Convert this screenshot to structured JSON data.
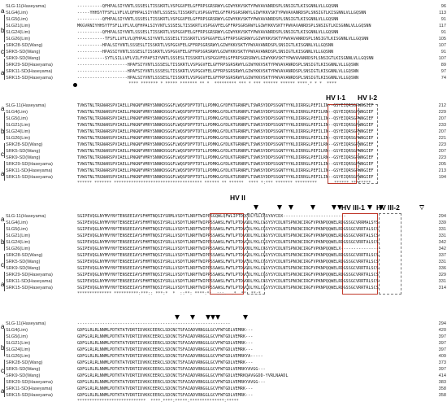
{
  "names": [
    "SLG-11(Haseyama)",
    "SLG4(Lim)",
    "SLG5(Lim)",
    "SLG21(Lim)",
    "SLG24(Lim)",
    "SLG26(Lim)",
    "SRK28-SD(Wang)",
    "SRK5-SD(Wang)",
    "SRK9-SD(Wang)",
    "SRK29-SD(Haseyama)",
    "SRK11-SD(Haseyama)",
    "SRK15-SD(Haseyama)"
  ],
  "groups": [
    "a",
    "b",
    "c",
    "a"
  ],
  "blocks": [
    {
      "seqs": [
        "----------QFHPALSIYVNTLSSSESLTISSKRTLVSPGGVFELGFFRPSGRSRWYLGIWYKKVSKTYPWVAVANRDSPLSNSIGTLKISGNNLVLLGQSNN",
        "-----YHHSYTFSFLLVFLVLQFHPALSIYVNTLSSSESLTISSKRTLVSPGGVFELGFFRPSGRSRWYLGIWYKKVSKTYPWVAVANRDSPLSNSIGTLKISGNNLVLLGQSNN",
        "----------QFHPALSIYVNTLSSSESLTISSKRTLVSPGGVFELGFFRPSGRSRWYLGIWYKKVSKTYPWVAVANRDSPLSNSIGTLKISGNNLVLLGQSNN",
        "MKGVRNIYHHSYTFSFLLVFLVLQFHPALSIYVNTLSSSESLTISSKRTLVSPGGVFELGFFRPSGRSRWYLGIWYKKVSKTYPWVAVANRDSPLSNSIGTLKISGNNLVLLGQSNN",
        "----------QFHPALSIYVNTLSSSESLTISSKRTLVSPGGVFELGFFRPSGRSRWYLGIWYKKVSKTYPWVAVANRDSPLSNSIGTLKISGNNLVLLGQSNN",
        "-----------TFSFLLVFLVLQFHPALSIYVNTLSSSESLTISSKRTLVSPGGVFELGFFRPSGRSRWYLGIWYKKVSKTYPWVAVANRDSPLSNSIGTLKISGNNLVLLGQSNN",
        "----------HPALSIYVNTLSSSESLTISSKRTLVSPGGVFELGFFRPSGRSRWYLGIWYKKVSKTYPWVAVANRDSPLSNSIGTLKISGNNLVLLGQSNN",
        "----------HPASSIYVNTLSSSESLTISSKRTLVSPGGVFELGFFRPSGRSRWYLGIWYKKVSKTYPWVAVANRDSPLSNSIGTLKISGNNLVLLGQSNN",
        "-----------SYTLSILLVFLVILFYPAFSIYVNTLSSSESLTISSKRTLVSPGGVFELGFFRPSGRSRWYLGIWYKKVSKTYPWVAVANRDSPLSNSIGTLKISGNNLVLLGQSNN",
        "--------------------HPAFSIYVNTLSSSESLTISSKRTLVSPGGVFELGFFRPSGRSRWYLGIWYKKVSKTYPWVAVANRDSPLSNSIGTLKISGNNLVLLGQSNN",
        "--------------------HPAFSIYVNTLSSSESLTISSKRTLVSPGGVFELGFFRPSGRSRWYLGIWYKKVSKTYPWVAVANRDSPLSNSIGTLKISGNNLVLLGQSNN",
        "--------------------HPALSIYVNTLSSSESLTISSKRTLVSPGGVFELGFFRPSGRSRWYLGIWYKKVSKTYPWVAVANRDSPLSNSIGTLKISGNNLVLLGQSNN"
      ],
      "nums": [
        "96",
        "113",
        "91",
        "117",
        "91",
        "105",
        "107",
        "91",
        "107",
        "89",
        "97",
        "74"
      ],
      "cons": "                     **** ******* * ***** ******* ** *  ********* *** * *** ****** ****** ****.* * *  ****"
    },
    {
      "seqs": [
        "TVWSTNLTRGNARSPVIAELLPNGNFVMRYSNNKDSGGFLWQSFDFPTDTLLPDMKLGYDFKTGRNRFLTSWRSYDDPSSGNTYYKLDIRRGLPEFILIN--GSYEIQRSGPWNGIEF",
        "TVWSTNLTRGNARSPVIAELLPNGNFVMRYSNNKDSGGFLWQSFDFPTDTLLPDMKLGYDLKTGRNRFLTSWKSYDDPSSGNTYYKLDIRRGLPEFILRN--QSYEIQRSGPWNGIEF",
        "TVWSTNLTRGNARSPVIAELLPNGNFVMRYSNNKDSGGFLWQSFDFPTDTLLPDMKLGYDLKTGRNRFLTSWKSYDDPSSGNTYYKLDIRRGLPEFILIN--QSYEIQRSGPWNGIEF",
        "TVWSTNLTRGNARSPVIAELLPNGNFVMRYSNNKDSGGFLWQSFDFPTDTLLPDMKLGYDLKTGRNRFLTSWKSYDDPSSGNTYYKLDIRRGLPEFILIN--QSYEIQRSGPWNGIEF",
        "TVWSTNLTRGNARSPVIAELLPNGNFVMRYSNNKDSGGFLWQSFDFPTDTLLPDMKLGYDLKTGRNRFLTSWKSYDDPSSGNTYYKLDIRRGLPEFILIN--QSYEIQRSGPWNGIEF",
        "TVWSTNLTRGNARSPVIAELLPNGNFVMRYSNNKDSGGFLWQSFDFPTDTLLPDMKLGYDLKTGRNRFLTSWKSYDDPSSGNTYYKLDIRRGLPEFILIN--QSYEIQRSGPWNGIEF",
        "TVWSTNLTRGNARSPVIAELLPNGNFVMRYSNNKDSGGFLWQSFDFPTDTLLPDMKLGYDLKTGRNRFLTSWKSYDDPSSGNTYYKLDIRRGLPEFILRN--GSYEIQRSGPWNGIEF",
        "TVWSTNLTRGNARSPVIAELLPNGNFVMRYSNNKDSGGFLWQSFDFPTDTLLPDMKLGYDLKTGRNRFLTSWKSYDDPSSGNTYYKLDIRRGLPEFILRN--GSYEIQRSGPWNGIEF",
        "TVWSTNLTRGNARSPVIAELLPNGNFVMRYSNNKDSGGFLWQSFDFPTDTLLPDMKLGYDLKTGRNRFLTSWKSYDDPSSGNTYYKLDIRRGLPEFILRN--GSYEIQRSGPWNGIEF",
        "TVWSTNLTRGNARSPVIAELLPNGNFVMRYSNNKDSGGFLWQSFDFPTDTLLPDMKLGYDLKTGRNRFLTSWKSYDDPSSGNTYYKLDIRRGLPEFILIN--GSYEIQRSGPWNGIEF",
        "TVWSTNLTRGNARSPVIAELLPNGNFVMRYSNNKDSGGFLWQSFDFPTDTLLPDMKLGYDLKTGRNRFLTSWKSYDDPSSGNTYYKLDIRRGLPEFILIN--GSYEIQRSGPWNGIEF",
        "TVWSTNLTRGNARSPVIAELLPNGNFVMRYSNNKDSGGFLWQSFDFPTDTLLPDMKLGYDLKTGRNRFLTSWKSYDDPSSGNTYYKLDIRRGLPEFILIN--GSYEIQRSGPWNGIEF"
      ],
      "nums": [
        "212",
        "229",
        "207",
        "233",
        "207",
        "221",
        "223",
        "207",
        "223",
        "205",
        "213",
        "194"
      ],
      "cons": "****** ******* ************************************ ****** ** ******  **** *:*** ******* *********    :  ****** ********"
    },
    {
      "seqs": [
        "SGIPEVQGLNYMVYNYTENSEEIAYSFHMTNQSIYSRMLVSDYTLNRFTWIPPSGQWLQFWLIPTDQCDLYSLCGSYAYCDX-------------------------",
        "SGIPEVQGLNYMVYNYTENSEEIAYSFHMTNQSIYSRLLVSDYTLNRFTWIPPSSAWSLFWTLPTDVCDLYKLCGSYSYCDLNTSPNCNCIRGFVPKNPQQWELRDGSSGCVRRMALSYS",
        "SGIPEVQGLNYMVYNYTENSEEIAYSFHMTNQSIYSRLLVSDYTLNRFTWIPPSSAWSLFWTLPTDVCDLYKLCGSYSYCDLNTSPNCNCIRGFVPKNPQQWELRDGSSGCVRRTALSCS",
        "SGIPEVQGLNYMVYNYTENSEEIAYSFHMTNQSIYSRLLVSDYTLNRFTWIPPSSAWSLFWTLPTDVCDLYKLCGSYSYCDLNTSPNCNCIRGFVPKNPQQWELRDGSSGCVRRTALSCS",
        "SGIPEVQGLNYMVYNYTENSEEIAYSFHMTNQSIYSRLLVSDYTLNRFTWIPPSSAWSLFWTLPTDVCDLYKLCGSYSYCDLNTSPNCNCIRGFVPKNPQQWELRDGSSGCVRRTALSCS",
        "SGIPEVQGLNYMVYNYTENSEEIAYSFHMTNQSIYSRLLVSDYTLNRFTWIPPSSAWSLFWTLPTDVCDLYKLCGSYSYCDLNTSPNCNCIRGFVPKNPQQWELX----------------",
        "SGIPEVQGLNYMVYNYTENSEEIAYSFHMTNQSIYSRLLVSDYTLNRFTWIPPSSAWSLFWTLPTDVCDLYKLCGSYSYCDLNTSPNCNCIRGFVPKNPQQWELRDGSSGCVRRTRLSCS",
        "SGIPEVQGLNYMVYNYTENSEEIAYSFHMTNQSIYSRLLVSDYTLNRFTWIPPSSAWSLFWTLPTDVCDLYKLCGSYSYCDLNTSPNCNCIRGFVPKNPQQWELRDGSSGCVRRTRLSCS",
        "SGIPEVQGLNYMVYNYTENSEEIAYSFHMTNQSIYSRLLVSDYTLNRFTWIPPSSAWSLFWTLPTDVCDLYKLCGSYSYCDLNTSPNCNCIRGFVPKNPQQWELRDGSSGCVRRTRLSCS",
        "SGIPEVQGLNYMVYNYTENSEEIAYSFHMTNQSIYSRLLVSDYTLNRFTWIPPSSAWSLFWTLPTDVCDLYKLCGSYSYCDLNTSPNCNCIRGFVPKNPQQWELRDGSSGCVRRTRLSCS",
        "SGIPEVQGLNYMVYNYTENSEEIAYSFHMTNQSIYSRLLVSDYTLNRFTWIPPSSAWSLFWTLPTDVCDLYKLCGSYSYCDLNTSPNCNCIRGFVPKNPQQWELRDGSSGCVRRTRLSCS",
        "SGIPEVQGLNYMVYNYTENSEEIAYSFHMTNQSIYSRLLVSDYTLNRFTWIPPSSAWSLFWTLPTDVCDLYKLCGSYSYCDLNTSPNCNCIRGFVPKNPQQWELRDGSSGCVRRTRLSCS"
      ],
      "nums": [
        "294",
        "339",
        "331",
        "331",
        "342",
        "342",
        "337",
        "331",
        "336",
        "329",
        "331",
        "314"
      ],
      "cons": "************** **********:***:: ***:*  *  ::**: ****:*:  :::.  .*  **  **:*"
    },
    {
      "seqs": [
        "-------------------------------------------------------------",
        "GDFGLRLRLNNMLPDTKTATVDRTIDVKKCEERCLSDCNCTSFAIADVRNGGLGCVFWTGELVEMRK---",
        "GDFGLRLRLNNMLPDTKTATVDRTIDVKKCEERCLSDCNCTSFAIADVRNGGLGCVFWTGDLVEMRK---",
        "GDFGLRLRLNNMLPDTKTATVDRTIDVKKCEERCLSDCNCTSFAIADVRNGGLGCVFWTGDLVEMRK---",
        "GDFGLRLRLNNMLPDTKTATVDRTIDVKKCEERCLSDCNCTSFAIADVRNGGLGCVFWTGDLVEMRK---",
        "GDFGLRLRLNNMLPDTKTATVDRTIDVKKCEERCLSDCNCTSFAIADVRNGGLGCVFWTGDLVEMRKYA-----",
        "GDFGLRLRLNNMLPDTKTATVDRTIDVKKCEERCLSDCNCTSFAIADVRNGGLGCVFWTGDLVEMRK---",
        "GDFGLRLRLNNMLPDTKTATVDRTIDVKKCEERCLSDCNCTSFAIADVRNGGLGCVFWTGDLVEMRKYAVGG---",
        "GDFGLRLRLNNMLPDTKTATVDRTIDVKKCEERCLSDCNCTSFAIADVRNGGLGCVFWTGDLVEMRKQAVGGDD-YVRLNAADL",
        "GDFGLRLRLNNMLPDTKTATVDRTIDVKKCEERCLSDCNCTSFAIADVRNGGLGCVFWTGDLVEMRKYAVGG---",
        "GDFGLRLRLNNMLPDTKTATVDRTIDVKKCEERCLSDCNCTSFAIADVRNGGLGCVFWTGDLVEMRK---",
        "GDFGLRLRLNNMLPDTKTATVDRTIDVKKCEERCLSDCNCTSFAIADVRNGGLGCVFWTGDLVEMRK---"
      ],
      "nums": [
        "294",
        "420",
        "397",
        "397",
        "397",
        "409",
        "373",
        "397",
        "414",
        "383",
        "358",
        "358"
      ],
      "cons": "****************************  ****.****:*****:**************:*****"
    }
  ],
  "labels": {
    "hv1_1": "HV I-1",
    "hv1_2": "HV I-2",
    "hv2": "HV II",
    "hv3_1": "HV III-1",
    "hv3_2": "HV III-2"
  }
}
